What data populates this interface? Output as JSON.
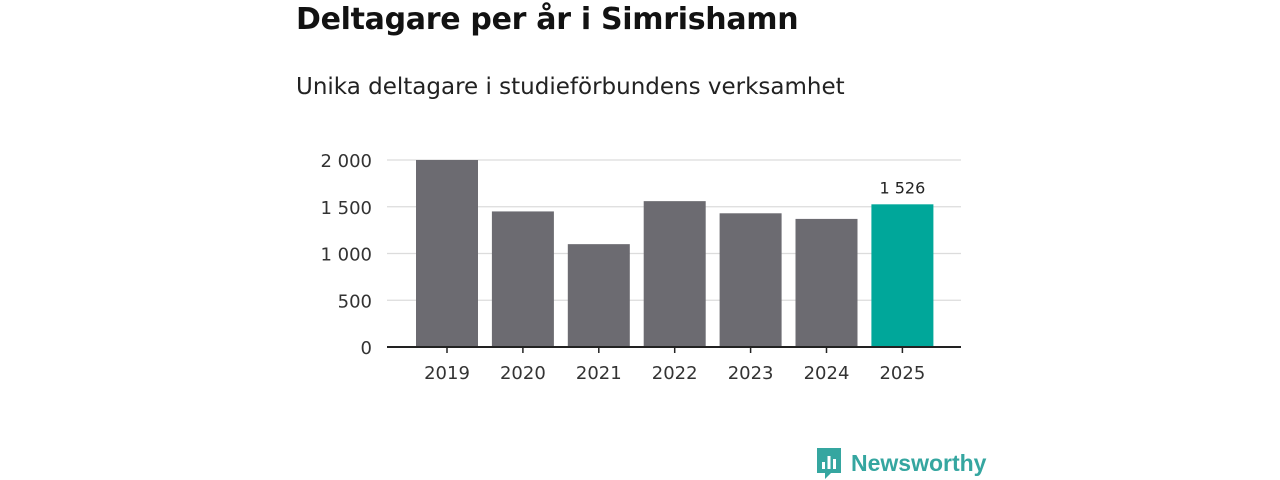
{
  "title": "Deltagare per år i Simrishamn",
  "subtitle": "Unika deltagare i studieförbundens verksamhet",
  "brand": "Newsworthy",
  "colors": {
    "bar": "#6c6b71",
    "highlight": "#00a79a",
    "grid": "#dcdcdc",
    "axis": "#222222",
    "brand": "#35a6a0"
  },
  "chart_data": {
    "type": "bar",
    "categories": [
      "2019",
      "2020",
      "2021",
      "2022",
      "2023",
      "2024",
      "2025"
    ],
    "values": [
      2000,
      1450,
      1100,
      1560,
      1430,
      1370,
      1526
    ],
    "highlight_index": 6,
    "data_labels": [
      {
        "index": 6,
        "text": "1 526"
      }
    ],
    "yticks": [
      0,
      500,
      1000,
      1500,
      2000
    ],
    "ytick_labels": [
      "0",
      "500",
      "1 000",
      "1 500",
      "2 000"
    ],
    "ylim": [
      0,
      2000
    ],
    "grid": true
  }
}
